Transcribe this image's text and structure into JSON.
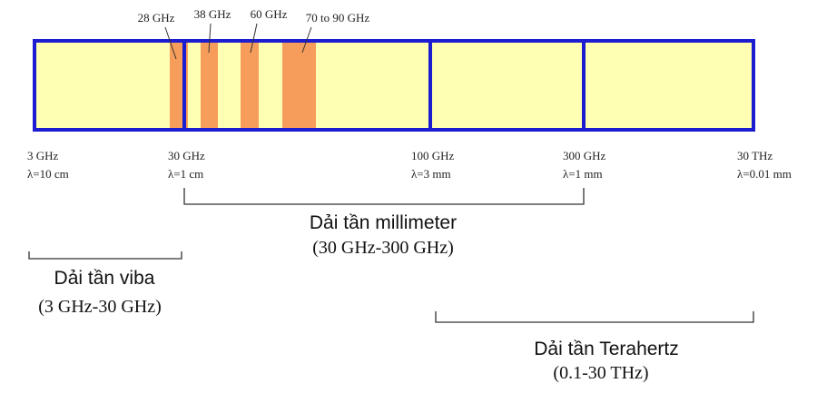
{
  "bands": [
    {
      "label": "28 GHz"
    },
    {
      "label": "38 GHz"
    },
    {
      "label": "60 GHz"
    },
    {
      "label": "70 to 90 GHz"
    }
  ],
  "ticks": [
    {
      "frequency": "3 GHz",
      "wavelength": "λ=10 cm"
    },
    {
      "frequency": "30 GHz",
      "wavelength": "λ=1 cm"
    },
    {
      "frequency": "100 GHz",
      "wavelength": "λ=3 mm"
    },
    {
      "frequency": "300 GHz",
      "wavelength": "λ=1 mm"
    },
    {
      "frequency": "30 THz",
      "wavelength": "λ=0.01 mm"
    }
  ],
  "ranges": [
    {
      "name": "Dải tần millimeter",
      "span": "(30 GHz-300 GHz)"
    },
    {
      "name": "Dải tần viba",
      "span": "(3 GHz-30 GHz)"
    },
    {
      "name": "Dải tần Terahertz",
      "span": "(0.1-30 THz)"
    }
  ]
}
